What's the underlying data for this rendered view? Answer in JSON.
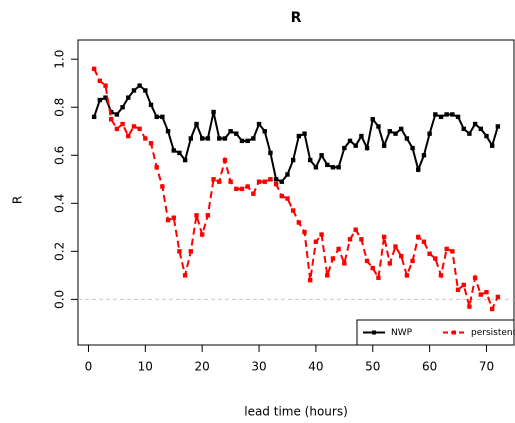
{
  "chart_data": {
    "type": "line",
    "title": "R",
    "xlabel": "lead time (hours)",
    "ylabel": "R",
    "x": [
      1,
      2,
      3,
      4,
      5,
      6,
      7,
      8,
      9,
      10,
      11,
      12,
      13,
      14,
      15,
      16,
      17,
      18,
      19,
      20,
      21,
      22,
      23,
      24,
      25,
      26,
      27,
      28,
      29,
      30,
      31,
      32,
      33,
      34,
      35,
      36,
      37,
      38,
      39,
      40,
      41,
      42,
      43,
      44,
      45,
      46,
      47,
      48,
      49,
      50,
      51,
      52,
      53,
      54,
      55,
      56,
      57,
      58,
      59,
      60,
      61,
      62,
      63,
      64,
      65,
      66,
      67,
      68,
      69,
      70,
      71,
      72
    ],
    "series": [
      {
        "name": "NWP",
        "color": "#000000",
        "linestyle": "solid",
        "values": [
          0.76,
          0.83,
          0.84,
          0.78,
          0.77,
          0.8,
          0.84,
          0.87,
          0.89,
          0.87,
          0.81,
          0.76,
          0.76,
          0.7,
          0.62,
          0.61,
          0.58,
          0.67,
          0.73,
          0.67,
          0.67,
          0.78,
          0.67,
          0.67,
          0.7,
          0.69,
          0.66,
          0.66,
          0.67,
          0.73,
          0.7,
          0.61,
          0.5,
          0.49,
          0.52,
          0.58,
          0.68,
          0.69,
          0.58,
          0.55,
          0.6,
          0.56,
          0.55,
          0.55,
          0.63,
          0.66,
          0.64,
          0.68,
          0.63,
          0.75,
          0.72,
          0.64,
          0.7,
          0.69,
          0.71,
          0.67,
          0.63,
          0.54,
          0.6,
          0.69,
          0.77,
          0.76,
          0.77,
          0.77,
          0.76,
          0.71,
          0.69,
          0.73,
          0.71,
          0.68,
          0.64,
          0.72
        ]
      },
      {
        "name": "persistence",
        "color": "#ff0000",
        "linestyle": "dashed",
        "values": [
          0.96,
          0.91,
          0.89,
          0.75,
          0.71,
          0.73,
          0.68,
          0.72,
          0.71,
          0.67,
          0.65,
          0.55,
          0.47,
          0.33,
          0.34,
          0.2,
          0.1,
          0.2,
          0.35,
          0.27,
          0.35,
          0.5,
          0.49,
          0.58,
          0.49,
          0.46,
          0.46,
          0.47,
          0.44,
          0.49,
          0.49,
          0.5,
          0.48,
          0.43,
          0.42,
          0.37,
          0.32,
          0.28,
          0.08,
          0.24,
          0.27,
          0.1,
          0.17,
          0.21,
          0.15,
          0.25,
          0.29,
          0.25,
          0.16,
          0.13,
          0.09,
          0.26,
          0.15,
          0.22,
          0.18,
          0.1,
          0.16,
          0.26,
          0.24,
          0.19,
          0.17,
          0.1,
          0.21,
          0.2,
          0.04,
          0.06,
          -0.03,
          0.09,
          0.02,
          0.03,
          -0.04,
          0.01
        ]
      }
    ],
    "xlim": [
      -1.84,
      74.84
    ],
    "ylim": [
      -0.19,
      1.08
    ],
    "xticks": [
      0,
      10,
      20,
      30,
      40,
      50,
      60,
      70
    ],
    "yticks": [
      {
        "value": 0,
        "label": "0.0"
      },
      {
        "value": 0.2,
        "label": "0.2"
      },
      {
        "value": 0.4,
        "label": "0.4"
      },
      {
        "value": 0.6,
        "label": "0.6"
      },
      {
        "value": 0.8,
        "label": "0.8"
      },
      {
        "value": 1,
        "label": "1.0"
      }
    ],
    "hline": 0,
    "legend": "bottomright"
  }
}
